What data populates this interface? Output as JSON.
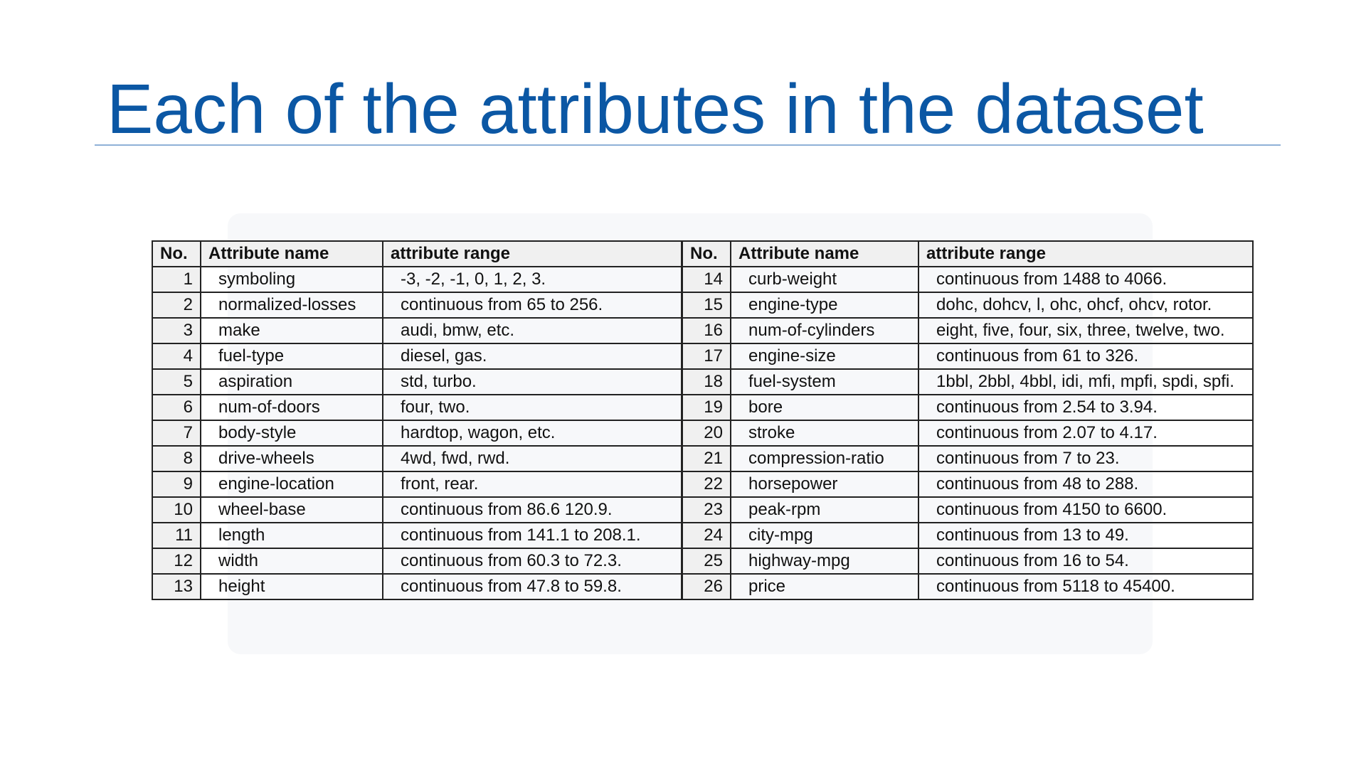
{
  "slide": {
    "title": "Each of the attributes in the dataset"
  },
  "table": {
    "headers": {
      "no": "No.",
      "name": "Attribute name",
      "range": "attribute range"
    },
    "rows": [
      {
        "left": {
          "no": "1",
          "name": "symboling",
          "range": "-3, -2, -1, 0, 1, 2, 3."
        },
        "right": {
          "no": "14",
          "name": "curb-weight",
          "range": "continuous from 1488 to 4066."
        }
      },
      {
        "left": {
          "no": "2",
          "name": "normalized-losses",
          "range": "continuous from 65 to 256."
        },
        "right": {
          "no": "15",
          "name": "engine-type",
          "range": "dohc, dohcv, l, ohc, ohcf, ohcv, rotor."
        }
      },
      {
        "left": {
          "no": "3",
          "name": "make",
          "range": "audi, bmw, etc."
        },
        "right": {
          "no": "16",
          "name": "num-of-cylinders",
          "range": "eight, five, four, six, three, twelve, two."
        }
      },
      {
        "left": {
          "no": "4",
          "name": "fuel-type",
          "range": "diesel, gas."
        },
        "right": {
          "no": "17",
          "name": "engine-size",
          "range": "continuous from 61 to 326."
        }
      },
      {
        "left": {
          "no": "5",
          "name": "aspiration",
          "range": "std, turbo."
        },
        "right": {
          "no": "18",
          "name": "fuel-system",
          "range": "1bbl, 2bbl, 4bbl, idi, mfi, mpfi, spdi, spfi."
        }
      },
      {
        "left": {
          "no": "6",
          "name": "num-of-doors",
          "range": "four, two."
        },
        "right": {
          "no": "19",
          "name": "bore",
          "range": "continuous from 2.54 to 3.94."
        }
      },
      {
        "left": {
          "no": "7",
          "name": "body-style",
          "range": "hardtop, wagon, etc."
        },
        "right": {
          "no": "20",
          "name": "stroke",
          "range": "continuous from 2.07 to 4.17."
        }
      },
      {
        "left": {
          "no": "8",
          "name": "drive-wheels",
          "range": "4wd, fwd, rwd."
        },
        "right": {
          "no": "21",
          "name": "compression-ratio",
          "range": "continuous from 7 to 23."
        }
      },
      {
        "left": {
          "no": "9",
          "name": "engine-location",
          "range": "front, rear."
        },
        "right": {
          "no": "22",
          "name": "horsepower",
          "range": "continuous from 48 to 288."
        }
      },
      {
        "left": {
          "no": "10",
          "name": "wheel-base",
          "range": "continuous from 86.6 120.9."
        },
        "right": {
          "no": "23",
          "name": "peak-rpm",
          "range": "continuous from 4150 to 6600."
        }
      },
      {
        "left": {
          "no": "11",
          "name": "length",
          "range": "continuous from 141.1 to 208.1."
        },
        "right": {
          "no": "24",
          "name": "city-mpg",
          "range": "continuous from 13 to 49."
        }
      },
      {
        "left": {
          "no": "12",
          "name": "width",
          "range": "continuous from 60.3 to 72.3."
        },
        "right": {
          "no": "25",
          "name": "highway-mpg",
          "range": "continuous from 16 to 54."
        }
      },
      {
        "left": {
          "no": "13",
          "name": "height",
          "range": "continuous from 47.8 to 59.8."
        },
        "right": {
          "no": "26",
          "name": "price",
          "range": "continuous from 5118 to 45400."
        }
      }
    ]
  },
  "colors": {
    "title": "#0b57a4",
    "rule": "#8fb1d7",
    "header_bg": "#f0f0f0",
    "border": "#222222"
  }
}
